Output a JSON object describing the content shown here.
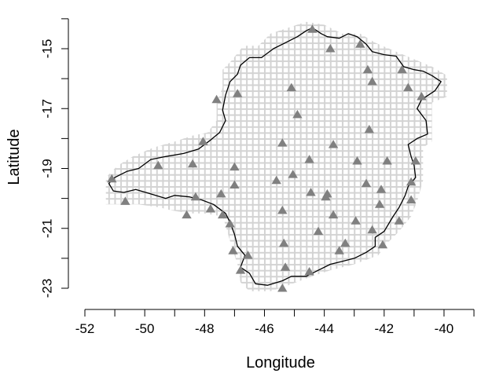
{
  "chart_data": {
    "type": "scatter",
    "title": "",
    "xlabel": "Longitude",
    "ylabel": "Latitude",
    "xlim": [
      -52,
      -39
    ],
    "ylim": [
      -23.6,
      -14.2
    ],
    "x_ticks": [
      -52,
      -50,
      -48,
      -46,
      -44,
      -42,
      -40
    ],
    "x_minor_ticks": [
      -51,
      -49,
      -47,
      -45,
      -43,
      -41,
      -39
    ],
    "y_ticks": [
      -15,
      -17,
      -19,
      -21,
      -23
    ],
    "y_minor_ticks": [
      -14,
      -16,
      -18,
      -20,
      -22
    ],
    "grid_cell_deg": 0.2,
    "colors": {
      "grid": "#d3d3d3",
      "boundary": "#000000",
      "station": "#808080"
    },
    "boundary": [
      [
        -44.4,
        -14.3
      ],
      [
        -44.1,
        -14.5
      ],
      [
        -43.9,
        -14.6
      ],
      [
        -43.5,
        -14.65
      ],
      [
        -43.2,
        -14.5
      ],
      [
        -42.9,
        -14.6
      ],
      [
        -42.6,
        -14.85
      ],
      [
        -42.4,
        -15.1
      ],
      [
        -42.0,
        -15.2
      ],
      [
        -41.6,
        -15.25
      ],
      [
        -41.35,
        -15.6
      ],
      [
        -41.0,
        -15.7
      ],
      [
        -40.7,
        -15.75
      ],
      [
        -40.4,
        -15.9
      ],
      [
        -40.1,
        -16.1
      ],
      [
        -40.3,
        -16.4
      ],
      [
        -40.75,
        -16.7
      ],
      [
        -40.9,
        -17.0
      ],
      [
        -40.6,
        -17.4
      ],
      [
        -40.55,
        -17.85
      ],
      [
        -40.9,
        -18.0
      ],
      [
        -41.2,
        -18.2
      ],
      [
        -41.1,
        -18.6
      ],
      [
        -41.0,
        -18.9
      ],
      [
        -40.95,
        -19.3
      ],
      [
        -41.2,
        -19.6
      ],
      [
        -41.3,
        -19.9
      ],
      [
        -41.5,
        -20.3
      ],
      [
        -41.7,
        -20.6
      ],
      [
        -41.85,
        -20.85
      ],
      [
        -42.0,
        -21.1
      ],
      [
        -42.3,
        -21.3
      ],
      [
        -42.3,
        -21.6
      ],
      [
        -42.6,
        -21.8
      ],
      [
        -43.0,
        -22.0
      ],
      [
        -43.4,
        -22.1
      ],
      [
        -43.8,
        -22.2
      ],
      [
        -44.2,
        -22.4
      ],
      [
        -44.6,
        -22.6
      ],
      [
        -45.1,
        -22.6
      ],
      [
        -45.4,
        -22.75
      ],
      [
        -45.9,
        -22.9
      ],
      [
        -46.3,
        -22.85
      ],
      [
        -46.5,
        -22.5
      ],
      [
        -46.8,
        -22.3
      ],
      [
        -46.65,
        -21.9
      ],
      [
        -46.9,
        -21.6
      ],
      [
        -47.0,
        -21.2
      ],
      [
        -47.15,
        -20.8
      ],
      [
        -47.3,
        -20.5
      ],
      [
        -47.7,
        -20.2
      ],
      [
        -48.1,
        -20.05
      ],
      [
        -48.5,
        -19.95
      ],
      [
        -49.0,
        -19.9
      ],
      [
        -49.3,
        -20.0
      ],
      [
        -49.8,
        -19.85
      ],
      [
        -50.3,
        -19.7
      ],
      [
        -50.7,
        -19.8
      ],
      [
        -51.05,
        -19.75
      ],
      [
        -51.2,
        -19.5
      ],
      [
        -51.0,
        -19.3
      ],
      [
        -50.6,
        -19.1
      ],
      [
        -50.2,
        -19.0
      ],
      [
        -49.8,
        -18.7
      ],
      [
        -49.3,
        -18.6
      ],
      [
        -48.7,
        -18.5
      ],
      [
        -48.2,
        -18.35
      ],
      [
        -47.8,
        -18.05
      ],
      [
        -47.5,
        -17.8
      ],
      [
        -47.3,
        -17.4
      ],
      [
        -47.4,
        -17.05
      ],
      [
        -47.3,
        -16.55
      ],
      [
        -47.15,
        -16.1
      ],
      [
        -46.9,
        -15.85
      ],
      [
        -46.8,
        -15.55
      ],
      [
        -46.5,
        -15.3
      ],
      [
        -46.1,
        -15.3
      ],
      [
        -45.7,
        -15.0
      ],
      [
        -45.3,
        -14.8
      ],
      [
        -44.9,
        -14.6
      ],
      [
        -44.6,
        -14.4
      ],
      [
        -44.4,
        -14.3
      ]
    ],
    "grid_extent": [
      [
        -44.6,
        -14.1
      ],
      [
        -44.0,
        -14.2
      ],
      [
        -43.4,
        -14.5
      ],
      [
        -42.8,
        -14.5
      ],
      [
        -42.3,
        -14.8
      ],
      [
        -41.6,
        -15.1
      ],
      [
        -40.4,
        -15.6
      ],
      [
        -39.9,
        -15.9
      ],
      [
        -39.9,
        -16.6
      ],
      [
        -40.4,
        -16.8
      ],
      [
        -40.4,
        -18.1
      ],
      [
        -40.7,
        -18.3
      ],
      [
        -40.7,
        -19.4
      ],
      [
        -40.9,
        -20.1
      ],
      [
        -41.1,
        -20.6
      ],
      [
        -41.5,
        -21.1
      ],
      [
        -41.9,
        -21.5
      ],
      [
        -42.2,
        -21.9
      ],
      [
        -43.0,
        -22.2
      ],
      [
        -43.8,
        -22.4
      ],
      [
        -44.4,
        -22.6
      ],
      [
        -45.2,
        -22.9
      ],
      [
        -45.8,
        -23.1
      ],
      [
        -46.5,
        -23.1
      ],
      [
        -46.8,
        -22.8
      ],
      [
        -46.9,
        -22.2
      ],
      [
        -47.1,
        -21.6
      ],
      [
        -47.3,
        -20.9
      ],
      [
        -47.4,
        -20.6
      ],
      [
        -48.0,
        -20.5
      ],
      [
        -48.5,
        -20.5
      ],
      [
        -49.1,
        -20.4
      ],
      [
        -49.5,
        -20.3
      ],
      [
        -50.2,
        -20.2
      ],
      [
        -50.8,
        -20.2
      ],
      [
        -51.3,
        -20.2
      ],
      [
        -51.3,
        -19.3
      ],
      [
        -50.9,
        -18.9
      ],
      [
        -50.4,
        -18.6
      ],
      [
        -49.7,
        -18.3
      ],
      [
        -49.0,
        -18.1
      ],
      [
        -48.4,
        -17.9
      ],
      [
        -47.9,
        -17.8
      ],
      [
        -47.6,
        -17.4
      ],
      [
        -47.6,
        -16.8
      ],
      [
        -47.4,
        -16.3
      ],
      [
        -47.4,
        -15.7
      ],
      [
        -47.1,
        -15.4
      ],
      [
        -46.7,
        -14.9
      ],
      [
        -46.2,
        -14.9
      ],
      [
        -45.8,
        -14.5
      ],
      [
        -45.2,
        -14.3
      ],
      [
        -44.6,
        -14.1
      ]
    ],
    "stations": [
      [
        -44.4,
        -14.35
      ],
      [
        -43.8,
        -15.0
      ],
      [
        -42.8,
        -14.85
      ],
      [
        -45.1,
        -16.3
      ],
      [
        -42.55,
        -15.7
      ],
      [
        -41.4,
        -15.7
      ],
      [
        -42.4,
        -16.1
      ],
      [
        -41.2,
        -16.3
      ],
      [
        -46.9,
        -16.5
      ],
      [
        -47.6,
        -16.7
      ],
      [
        -40.75,
        -16.6
      ],
      [
        -44.9,
        -17.2
      ],
      [
        -42.5,
        -17.7
      ],
      [
        -48.05,
        -18.1
      ],
      [
        -45.4,
        -18.15
      ],
      [
        -43.7,
        -18.2
      ],
      [
        -49.55,
        -18.9
      ],
      [
        -48.4,
        -18.85
      ],
      [
        -47.0,
        -18.95
      ],
      [
        -44.5,
        -18.7
      ],
      [
        -42.9,
        -18.75
      ],
      [
        -41.9,
        -18.75
      ],
      [
        -40.95,
        -18.75
      ],
      [
        -45.05,
        -19.2
      ],
      [
        -51.1,
        -19.35
      ],
      [
        -47.0,
        -19.55
      ],
      [
        -45.6,
        -19.4
      ],
      [
        -42.6,
        -19.5
      ],
      [
        -41.1,
        -19.45
      ],
      [
        -47.45,
        -19.85
      ],
      [
        -48.3,
        -19.95
      ],
      [
        -44.45,
        -19.8
      ],
      [
        -43.9,
        -19.85
      ],
      [
        -43.95,
        -19.95
      ],
      [
        -42.1,
        -19.7
      ],
      [
        -41.1,
        -20.05
      ],
      [
        -50.65,
        -20.1
      ],
      [
        -47.8,
        -20.35
      ],
      [
        -45.4,
        -20.4
      ],
      [
        -42.15,
        -20.2
      ],
      [
        -48.6,
        -20.55
      ],
      [
        -47.4,
        -20.55
      ],
      [
        -43.7,
        -20.55
      ],
      [
        -42.95,
        -20.75
      ],
      [
        -41.5,
        -20.75
      ],
      [
        -47.15,
        -20.85
      ],
      [
        -44.2,
        -21.1
      ],
      [
        -42.4,
        -21.05
      ],
      [
        -45.35,
        -21.5
      ],
      [
        -43.3,
        -21.5
      ],
      [
        -42.05,
        -21.55
      ],
      [
        -47.05,
        -21.75
      ],
      [
        -43.5,
        -21.75
      ],
      [
        -46.55,
        -21.9
      ],
      [
        -46.8,
        -22.4
      ],
      [
        -45.3,
        -22.3
      ],
      [
        -44.5,
        -22.45
      ],
      [
        -45.4,
        -23.0
      ]
    ]
  }
}
